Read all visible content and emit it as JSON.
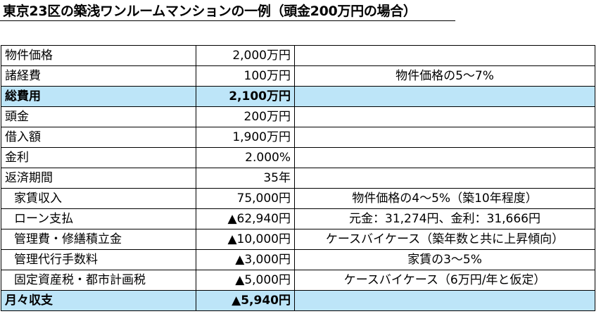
{
  "title": "東京23区の築浅ワンルームマンションの一例（頭金200万円の場合）",
  "colors": {
    "highlight": "#bde5f8",
    "border": "#000000"
  },
  "rows": [
    {
      "label": "物件価格",
      "value": "2,000万円",
      "note": "",
      "indent": false,
      "highlight": false
    },
    {
      "label": "諸経費",
      "value": "100万円",
      "note": "物件価格の5～7%",
      "indent": false,
      "highlight": false
    },
    {
      "label": "総費用",
      "value": "2,100万円",
      "note": "",
      "indent": false,
      "highlight": true
    },
    {
      "label": "頭金",
      "value": "200万円",
      "note": "",
      "indent": false,
      "highlight": false
    },
    {
      "label": "借入額",
      "value": "1,900万円",
      "note": "",
      "indent": false,
      "highlight": false
    },
    {
      "label": "金利",
      "value": "2.000%",
      "note": "",
      "indent": false,
      "highlight": false
    },
    {
      "label": "返済期間",
      "value": "35年",
      "note": "",
      "indent": false,
      "highlight": false
    },
    {
      "label": "家賃収入",
      "value": "75,000円",
      "note": "物件価格の4～5%（築10年程度）",
      "indent": true,
      "highlight": false
    },
    {
      "label": "ローン支払",
      "value": "▲62,940円",
      "note": "元金：31,274円、金利：31,666円",
      "indent": true,
      "highlight": false
    },
    {
      "label": "管理費・修繕積立金",
      "value": "▲10,000円",
      "note": "ケースバイケース（築年数と共に上昇傾向）",
      "indent": true,
      "highlight": false
    },
    {
      "label": "管理代行手数料",
      "value": "▲3,000円",
      "note": "家賃の3～5%",
      "indent": true,
      "highlight": false
    },
    {
      "label": "固定資産税・都市計画税",
      "value": "▲5,000円",
      "note": "ケースバイケース（6万円/年と仮定）",
      "indent": true,
      "highlight": false
    },
    {
      "label": "月々収支",
      "value": "▲5,940円",
      "note": "",
      "indent": false,
      "highlight": true
    }
  ]
}
